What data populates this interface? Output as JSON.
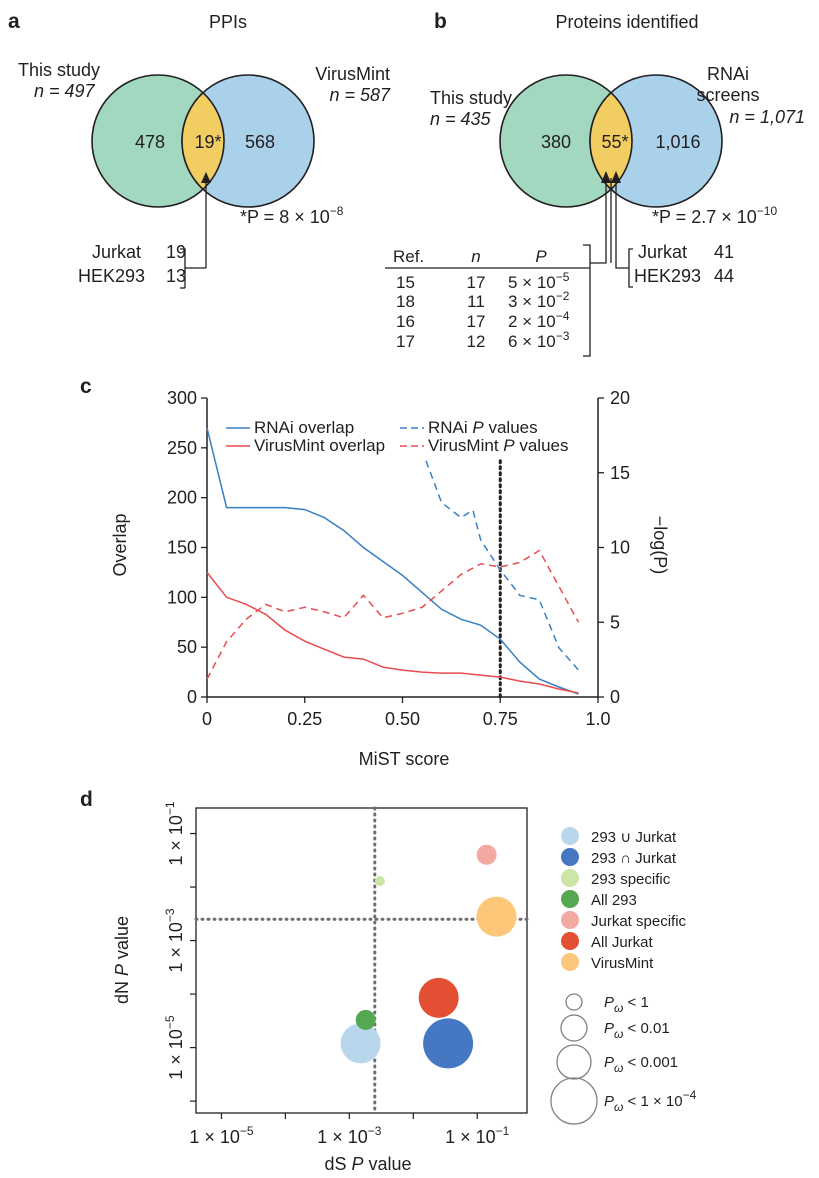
{
  "colors": {
    "venn_green": "#a2d8bf",
    "venn_blue": "#a9d1e9",
    "venn_overlap": "#f2cd62",
    "rnai_line": "#3b7fc4",
    "virusmint_line": "#e84b50",
    "bubble_293_union": "#b9d7ec",
    "bubble_293_intersect": "#4577c2",
    "bubble_293_specific": "#cde5a6",
    "bubble_all_293": "#55a850",
    "bubble_jurkat_specific": "#f4a8a2",
    "bubble_all_jurkat": "#e34f33",
    "bubble_virusmint": "#fdc77a"
  },
  "panel_a": {
    "letter": "a",
    "title": "PPIs",
    "left_label": "This study",
    "left_n": "n = 497",
    "right_label": "VirusMint",
    "right_n": "n = 587",
    "left_only": "478",
    "overlap": "19*",
    "right_only": "568",
    "pvalue_prefix": "*P = 8 × 10",
    "pvalue_exp": "−8",
    "rows": [
      {
        "label": "Jurkat",
        "value": "19"
      },
      {
        "label": "HEK293",
        "value": "13"
      }
    ]
  },
  "panel_b": {
    "letter": "b",
    "title": "Proteins identified",
    "left_label": "This study",
    "left_n": "n = 435",
    "right_label_1": "RNAi",
    "right_label_2": "screens",
    "right_n": "n = 1,071",
    "left_only": "380",
    "overlap": "55*",
    "right_only": "1,016",
    "pvalue_prefix": "*P = 2.7 × 10",
    "pvalue_exp": "−10",
    "table_headers": [
      "Ref.",
      "n",
      "P"
    ],
    "table_rows": [
      {
        "ref": "15",
        "n": "17",
        "p": "5 × 10",
        "exp": "−5"
      },
      {
        "ref": "18",
        "n": "11",
        "p": "3 × 10",
        "exp": "−2"
      },
      {
        "ref": "16",
        "n": "17",
        "p": "2 × 10",
        "exp": "−4"
      },
      {
        "ref": "17",
        "n": "12",
        "p": "6 × 10",
        "exp": "−3"
      }
    ],
    "cell_rows": [
      {
        "label": "Jurkat",
        "value": "41"
      },
      {
        "label": "HEK293",
        "value": "44"
      }
    ]
  },
  "chart_data": [
    {
      "type": "line",
      "panel": "c",
      "xlabel": "MiST score",
      "ylabel": "Overlap",
      "y2label": "−log(P)",
      "xlim": [
        0,
        1.0
      ],
      "ylim": [
        0,
        300
      ],
      "y2lim": [
        0,
        20
      ],
      "x_ticks": [
        "0",
        "0.25",
        "0.50",
        "0.75",
        "1.0"
      ],
      "y_ticks": [
        "0",
        "50",
        "100",
        "150",
        "200",
        "250",
        "300"
      ],
      "y2_ticks": [
        "0",
        "5",
        "10",
        "15",
        "20"
      ],
      "threshold_x": 0.75,
      "legend": [
        "RNAi overlap",
        "VirusMint overlap",
        "RNAi P values",
        "VirusMint P values"
      ],
      "series": [
        {
          "name": "RNAi overlap",
          "axis": "left",
          "style": "solid",
          "points": [
            [
              0,
              270
            ],
            [
              0.05,
              190
            ],
            [
              0.1,
              190
            ],
            [
              0.15,
              190
            ],
            [
              0.2,
              190
            ],
            [
              0.25,
              188
            ],
            [
              0.3,
              180
            ],
            [
              0.35,
              167
            ],
            [
              0.4,
              150
            ],
            [
              0.45,
              136
            ],
            [
              0.5,
              122
            ],
            [
              0.55,
              105
            ],
            [
              0.6,
              88
            ],
            [
              0.65,
              78
            ],
            [
              0.7,
              72
            ],
            [
              0.75,
              58
            ],
            [
              0.8,
              35
            ],
            [
              0.85,
              18
            ],
            [
              0.9,
              10
            ],
            [
              0.95,
              3
            ]
          ]
        },
        {
          "name": "VirusMint overlap",
          "axis": "left",
          "style": "solid",
          "points": [
            [
              0,
              125
            ],
            [
              0.05,
              100
            ],
            [
              0.1,
              93
            ],
            [
              0.15,
              83
            ],
            [
              0.2,
              67
            ],
            [
              0.25,
              56
            ],
            [
              0.3,
              48
            ],
            [
              0.35,
              40
            ],
            [
              0.4,
              38
            ],
            [
              0.45,
              30
            ],
            [
              0.5,
              27
            ],
            [
              0.55,
              25
            ],
            [
              0.6,
              24
            ],
            [
              0.65,
              24
            ],
            [
              0.7,
              22
            ],
            [
              0.75,
              20
            ],
            [
              0.8,
              16
            ],
            [
              0.85,
              13
            ],
            [
              0.9,
              8
            ],
            [
              0.95,
              4
            ]
          ]
        },
        {
          "name": "RNAi P values",
          "axis": "right",
          "style": "dashed",
          "points": [
            [
              0.56,
              15.8
            ],
            [
              0.6,
              13
            ],
            [
              0.65,
              12
            ],
            [
              0.68,
              12.5
            ],
            [
              0.7,
              10.5
            ],
            [
              0.75,
              8.5
            ],
            [
              0.8,
              6.8
            ],
            [
              0.85,
              6.5
            ],
            [
              0.9,
              3.3
            ],
            [
              0.95,
              1.8
            ]
          ]
        },
        {
          "name": "VirusMint P values",
          "axis": "right",
          "style": "dashed",
          "points": [
            [
              0,
              1.2
            ],
            [
              0.05,
              3.7
            ],
            [
              0.1,
              5.2
            ],
            [
              0.15,
              6.2
            ],
            [
              0.2,
              5.7
            ],
            [
              0.25,
              6
            ],
            [
              0.3,
              5.7
            ],
            [
              0.35,
              5.3
            ],
            [
              0.4,
              6.8
            ],
            [
              0.45,
              5.3
            ],
            [
              0.5,
              5.6
            ],
            [
              0.55,
              6
            ],
            [
              0.6,
              7.1
            ],
            [
              0.65,
              8.2
            ],
            [
              0.7,
              8.9
            ],
            [
              0.75,
              8.7
            ],
            [
              0.8,
              9
            ],
            [
              0.85,
              9.8
            ],
            [
              0.9,
              7.4
            ],
            [
              0.95,
              5
            ]
          ]
        }
      ]
    },
    {
      "type": "scatter",
      "panel": "d",
      "xlabel": "dS P value",
      "ylabel": "dN P value",
      "scale": "log",
      "x_ticks": [
        "1 × 10−5",
        "1 × 10−3",
        "1 × 10−1"
      ],
      "y_ticks": [
        "1 × 10−1",
        "1 × 10−3",
        "1 × 10−5"
      ],
      "xlim": [
        4e-06,
        0.6
      ],
      "ylim": [
        6e-07,
        0.3
      ],
      "threshold_x": 0.0025,
      "threshold_y": 0.0025,
      "size_legend": [
        "Pω < 1",
        "Pω < 0.01",
        "Pω < 0.001",
        "Pω < 1 × 10−4"
      ],
      "series": [
        {
          "name": "293 ∪ Jurkat",
          "x": 0.0015,
          "y": 1.2e-05,
          "size_level": 3
        },
        {
          "name": "293 ∩ Jurkat",
          "x": 0.035,
          "y": 1.2e-05,
          "size_level": 4
        },
        {
          "name": "293 specific",
          "x": 0.003,
          "y": 0.013,
          "size_level": 1
        },
        {
          "name": "All 293",
          "x": 0.0018,
          "y": 3.3e-05,
          "size_level": 2
        },
        {
          "name": "Jurkat specific",
          "x": 0.14,
          "y": 0.04,
          "size_level": 2
        },
        {
          "name": "All Jurkat",
          "x": 0.025,
          "y": 8.5e-05,
          "size_level": 3
        },
        {
          "name": "VirusMint",
          "x": 0.2,
          "y": 0.0028,
          "size_level": 3
        }
      ]
    }
  ]
}
